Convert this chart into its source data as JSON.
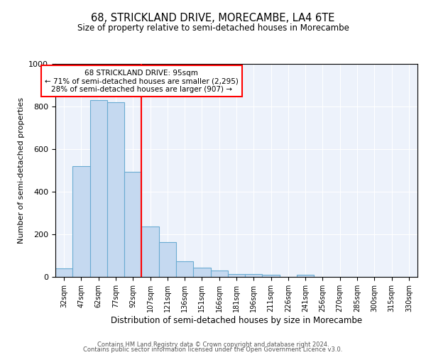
{
  "title": "68, STRICKLAND DRIVE, MORECAMBE, LA4 6TE",
  "subtitle": "Size of property relative to semi-detached houses in Morecambe",
  "xlabel": "Distribution of semi-detached houses by size in Morecambe",
  "ylabel": "Number of semi-detached properties",
  "categories": [
    "32sqm",
    "47sqm",
    "62sqm",
    "77sqm",
    "92sqm",
    "107sqm",
    "121sqm",
    "136sqm",
    "151sqm",
    "166sqm",
    "181sqm",
    "196sqm",
    "211sqm",
    "226sqm",
    "241sqm",
    "256sqm",
    "270sqm",
    "285sqm",
    "300sqm",
    "315sqm",
    "330sqm"
  ],
  "values": [
    40,
    520,
    830,
    820,
    495,
    238,
    162,
    75,
    45,
    30,
    15,
    15,
    10,
    0,
    10,
    0,
    0,
    0,
    0,
    0,
    0
  ],
  "bar_color": "#c5d9f0",
  "bar_edge_color": "#6aabd2",
  "red_line_x": 4.5,
  "annotation_line1": "68 STRICKLAND DRIVE: 95sqm",
  "annotation_line2": "← 71% of semi-detached houses are smaller (2,295)",
  "annotation_line3": "28% of semi-detached houses are larger (907) →",
  "ylim": [
    0,
    1000
  ],
  "background_color": "#edf2fb",
  "footer_line1": "Contains HM Land Registry data © Crown copyright and database right 2024.",
  "footer_line2": "Contains public sector information licensed under the Open Government Licence v3.0."
}
